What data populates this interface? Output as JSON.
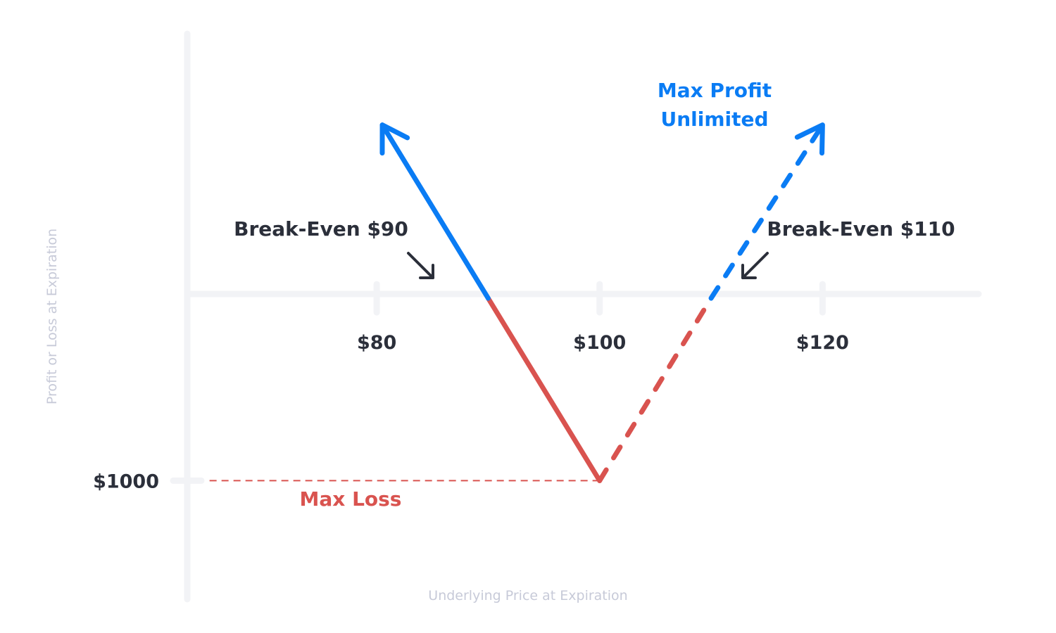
{
  "chart_data": {
    "type": "line",
    "title": "",
    "xlabel": "Underlying Price at Expiration",
    "ylabel": "Profit or Loss at Expiration",
    "x_ticks": [
      {
        "value": 80,
        "label": "$80"
      },
      {
        "value": 100,
        "label": "$100"
      },
      {
        "value": 120,
        "label": "$120"
      }
    ],
    "y_ticks": [
      {
        "value": -1000,
        "label": "$1000"
      }
    ],
    "xlim": [
      63,
      134
    ],
    "ylim": [
      -1650,
      1450
    ],
    "series": [
      {
        "points": [
          {
            "x": 90,
            "y": 0
          },
          {
            "x": 100,
            "y": -1000
          }
        ],
        "style": "solid",
        "color": "#d9534f"
      },
      {
        "points": [
          {
            "x": 90,
            "y": 0
          },
          {
            "x": 80.5,
            "y": 950
          }
        ],
        "style": "solid-arrow",
        "color": "#0a7cf4"
      },
      {
        "points": [
          {
            "x": 100,
            "y": -1000
          },
          {
            "x": 110,
            "y": 0
          }
        ],
        "style": "dashed",
        "color": "#d9534f"
      },
      {
        "points": [
          {
            "x": 110,
            "y": 0
          },
          {
            "x": 120,
            "y": 950
          }
        ],
        "style": "dashed-arrow",
        "color": "#0a7cf4"
      },
      {
        "points": [
          {
            "x": 65,
            "y": -1000
          },
          {
            "x": 100,
            "y": -1000
          }
        ],
        "style": "thin-dashed",
        "color": "#d9534f"
      }
    ],
    "annotations": {
      "break_even_low": {
        "label": "Break-Even $90",
        "x": 90,
        "y": 0
      },
      "break_even_high": {
        "label": "Break-Even $110",
        "x": 110,
        "y": 0
      },
      "max_profit_line1": "Max Profit",
      "max_profit_line2": "Unlimited",
      "max_loss": "Max Loss"
    },
    "colors": {
      "loss": "#d9534f",
      "profit": "#0a7cf4",
      "axis": "#f2f3f6",
      "text": "#2b2f3a",
      "muted_text": "#c7cad8"
    },
    "grid": false
  }
}
